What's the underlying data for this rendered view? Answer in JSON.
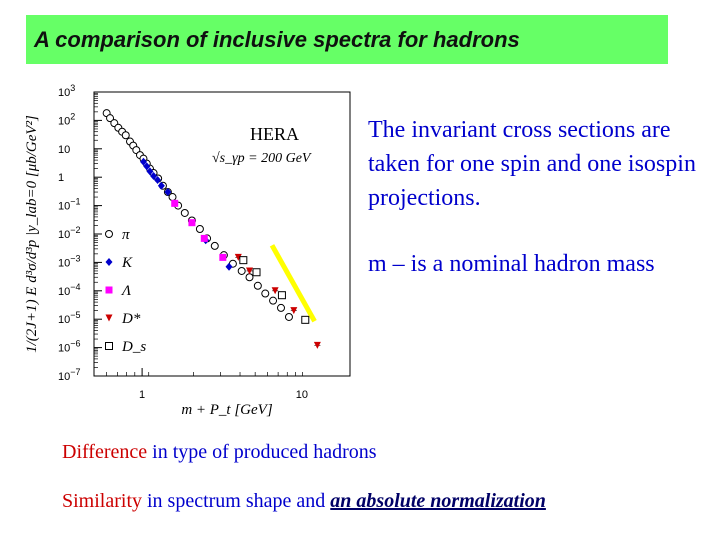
{
  "header": {
    "title": "A comparison of inclusive spectra for  hadrons"
  },
  "notes": {
    "cross_sections": "The invariant cross sections are taken for one spin and one isospin projections.",
    "nominal_mass": "m – is a nominal hadron mass"
  },
  "bottom": {
    "line1_emph": "Difference",
    "line1_rest": " in type of produced hadrons",
    "line2_emph": "Similarity",
    "line2_mid": " in spectrum shape and ",
    "line2_strong": "an absolute normalization"
  },
  "chart_data": {
    "type": "scatter",
    "x_scale": "log",
    "y_scale": "log",
    "xlim": [
      0.5,
      20
    ],
    "ylim": [
      1e-07,
      1000.0
    ],
    "x_ticks": [
      {
        "value": 1,
        "label": "1"
      },
      {
        "value": 10,
        "label": "10"
      }
    ],
    "y_ticks": [
      {
        "value": 1000,
        "base": "10",
        "exp": "3"
      },
      {
        "value": 100,
        "base": "10",
        "exp": "2"
      },
      {
        "value": 10,
        "base": "10",
        "exp": ""
      },
      {
        "value": 1,
        "base": "1",
        "exp": ""
      },
      {
        "value": 0.1,
        "base": "10",
        "exp": "−1"
      },
      {
        "value": 0.01,
        "base": "10",
        "exp": "−2"
      },
      {
        "value": 0.001,
        "base": "10",
        "exp": "−3"
      },
      {
        "value": 0.0001,
        "base": "10",
        "exp": "−4"
      },
      {
        "value": 1e-05,
        "base": "10",
        "exp": "−5"
      },
      {
        "value": 1e-06,
        "base": "10",
        "exp": "−6"
      },
      {
        "value": 1e-07,
        "base": "10",
        "exp": "−7"
      }
    ],
    "xlabel": "m + P_t [GeV]",
    "ylabel": "1/(2J+1) E d³σ/d³p |y_lab=0 [μb/GeV²]",
    "annotation_title": "HERA",
    "annotation_energy": "√s_γp = 200 GeV",
    "legend_position": "left-bottom",
    "trend_line": {
      "color": "#ffff00",
      "x": [
        6.5,
        12.0
      ],
      "y": [
        0.004,
        8.5e-06
      ]
    },
    "series": [
      {
        "name": "π",
        "marker": "circle-open",
        "color": "#000000",
        "points": [
          [
            0.6,
            180
          ],
          [
            0.63,
            120
          ],
          [
            0.67,
            80
          ],
          [
            0.71,
            55
          ],
          [
            0.75,
            40
          ],
          [
            0.79,
            30
          ],
          [
            0.84,
            18
          ],
          [
            0.88,
            13
          ],
          [
            0.92,
            9
          ],
          [
            0.97,
            6
          ],
          [
            1.02,
            4.5
          ],
          [
            1.07,
            3
          ],
          [
            1.12,
            2
          ],
          [
            1.18,
            1.4
          ],
          [
            1.26,
            0.9
          ],
          [
            1.35,
            0.5
          ],
          [
            1.45,
            0.3
          ],
          [
            1.55,
            0.2
          ],
          [
            1.68,
            0.1
          ],
          [
            1.85,
            0.055
          ],
          [
            2.05,
            0.03
          ],
          [
            2.3,
            0.015
          ],
          [
            2.55,
            0.007
          ],
          [
            2.85,
            0.0038
          ],
          [
            3.25,
            0.0018
          ],
          [
            3.7,
            0.0009
          ],
          [
            4.2,
            0.0005
          ],
          [
            4.7,
            0.0003
          ],
          [
            5.3,
            0.00015
          ],
          [
            5.9,
            8e-05
          ],
          [
            6.6,
            4.5e-05
          ],
          [
            7.4,
            2.5e-05
          ],
          [
            8.3,
            1.2e-05
          ]
        ]
      },
      {
        "name": "K",
        "marker": "filled-diamond",
        "color": "#0000cc",
        "points": [
          [
            1.02,
            3.5
          ],
          [
            1.07,
            2.4
          ],
          [
            1.12,
            1.6
          ],
          [
            1.18,
            1.1
          ],
          [
            1.25,
            0.8
          ],
          [
            1.32,
            0.5
          ],
          [
            1.45,
            0.3
          ],
          [
            2.5,
            0.006
          ],
          [
            3.5,
            0.0007
          ]
        ]
      },
      {
        "name": "Λ",
        "marker": "filled-square",
        "color": "#ff00ff",
        "points": [
          [
            1.6,
            0.12
          ],
          [
            2.05,
            0.025
          ],
          [
            2.45,
            0.007
          ],
          [
            3.2,
            0.0015
          ]
        ]
      },
      {
        "name": "D*",
        "marker": "triangle-down",
        "color": "#cc0000",
        "points": [
          [
            4.0,
            0.0015
          ],
          [
            4.7,
            0.0005
          ],
          [
            6.8,
            0.0001
          ],
          [
            8.9,
            2e-05
          ],
          [
            12.5,
            1.2e-06
          ]
        ]
      },
      {
        "name": "D_s",
        "marker": "square-open",
        "color": "#000000",
        "points": [
          [
            4.3,
            0.0012
          ],
          [
            5.2,
            0.00045
          ],
          [
            7.5,
            7e-05
          ],
          [
            10.5,
            9.5e-06
          ]
        ]
      }
    ]
  }
}
